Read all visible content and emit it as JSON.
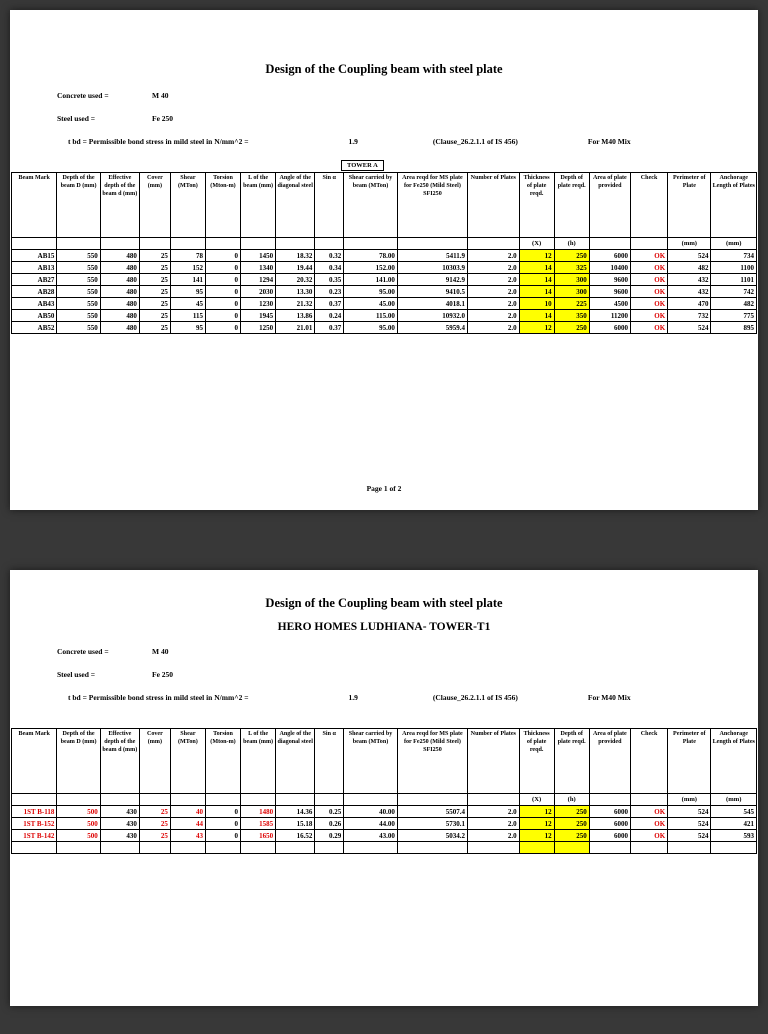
{
  "colors": {
    "highlight": "#ffff00",
    "alert": "#dd0000",
    "page_bg": "#ffffff",
    "canvas_bg": "#383838"
  },
  "info": {
    "concrete_label": "Concrete used =",
    "concrete_value": "M 40",
    "steel_label": "Steel used =",
    "steel_value": "Fe 250",
    "tbd_label": "t bd = Permissible bond stress in mild steel in N/mm^2 =",
    "tbd_value": "1.9",
    "clause": "(Clause_26.2.1.1 of IS 456)",
    "mix": "For M40 Mix"
  },
  "table": {
    "headers": [
      "Beam Mark",
      "Depth of the beam D (mm)",
      "Effective depth of the beam d (mm)",
      "Cover (mm)",
      "Shear (MTon)",
      "Torsion (Mton-m)",
      "L of the beam (mm)",
      "Angle of the diagonal steel",
      "Sin α",
      "Shear carried by beam (MTon)",
      "Area reqd for MS plate for Fe250 (Mild Steel) SFI250",
      "Number of Plates",
      "Thickness of plate reqd.",
      "Depth of plate reqd.",
      "Area of plate provided",
      "Check",
      "Perimeter of Plate",
      "Anchorage Length of Plates"
    ],
    "subheaders": [
      "",
      "",
      "",
      "",
      "",
      "",
      "",
      "",
      "",
      "",
      "",
      "",
      "(X)",
      "(h)",
      "",
      "",
      "(mm)",
      "(mm)"
    ],
    "highlight_columns": [
      12,
      13
    ],
    "check_column": 15
  },
  "pages": [
    {
      "title": "Design of the Coupling beam with steel plate",
      "subtitle": "",
      "tower_label": "TOWER A",
      "footer": "Page 1 of 2",
      "red_columns": [],
      "trailing_empty_row": false,
      "rows": [
        [
          "AB15",
          "550",
          "480",
          "25",
          "78",
          "0",
          "1450",
          "18.32",
          "0.32",
          "78.00",
          "5411.9",
          "2.0",
          "12",
          "250",
          "6000",
          "OK",
          "524",
          "734"
        ],
        [
          "AB13",
          "550",
          "480",
          "25",
          "152",
          "0",
          "1340",
          "19.44",
          "0.34",
          "152.00",
          "10303.9",
          "2.0",
          "14",
          "325",
          "10400",
          "OK",
          "482",
          "1100"
        ],
        [
          "AB27",
          "550",
          "480",
          "25",
          "141",
          "0",
          "1294",
          "20.32",
          "0.35",
          "141.00",
          "9142.9",
          "2.0",
          "14",
          "300",
          "9600",
          "OK",
          "432",
          "1101"
        ],
        [
          "AB28",
          "550",
          "480",
          "25",
          "95",
          "0",
          "2030",
          "13.30",
          "0.23",
          "95.00",
          "9410.5",
          "2.0",
          "14",
          "300",
          "9600",
          "OK",
          "432",
          "742"
        ],
        [
          "AB43",
          "550",
          "480",
          "25",
          "45",
          "0",
          "1230",
          "21.32",
          "0.37",
          "45.00",
          "4018.1",
          "2.0",
          "10",
          "225",
          "4500",
          "OK",
          "470",
          "482"
        ],
        [
          "AB50",
          "550",
          "480",
          "25",
          "115",
          "0",
          "1945",
          "13.86",
          "0.24",
          "115.00",
          "10932.0",
          "2.0",
          "14",
          "350",
          "11200",
          "OK",
          "732",
          "775"
        ],
        [
          "AB52",
          "550",
          "480",
          "25",
          "95",
          "0",
          "1250",
          "21.01",
          "0.37",
          "95.00",
          "5959.4",
          "2.0",
          "12",
          "250",
          "6000",
          "OK",
          "524",
          "895"
        ]
      ]
    },
    {
      "title": "Design of the Coupling beam with steel plate",
      "subtitle": "HERO HOMES LUDHIANA- TOWER-T1",
      "tower_label": "",
      "footer": "",
      "red_columns": [
        0,
        1,
        3,
        4,
        6
      ],
      "trailing_empty_row": true,
      "rows": [
        [
          "1ST B-118",
          "500",
          "430",
          "25",
          "40",
          "0",
          "1480",
          "14.36",
          "0.25",
          "40.00",
          "5507.4",
          "2.0",
          "12",
          "250",
          "6000",
          "OK",
          "524",
          "545"
        ],
        [
          "1ST B-152",
          "500",
          "430",
          "25",
          "44",
          "0",
          "1585",
          "15.18",
          "0.26",
          "44.00",
          "5730.1",
          "2.0",
          "12",
          "250",
          "6000",
          "OK",
          "524",
          "421"
        ],
        [
          "1ST B-142",
          "500",
          "430",
          "25",
          "43",
          "0",
          "1650",
          "16.52",
          "0.29",
          "43.00",
          "5034.2",
          "2.0",
          "12",
          "250",
          "6000",
          "OK",
          "524",
          "593"
        ]
      ]
    }
  ]
}
